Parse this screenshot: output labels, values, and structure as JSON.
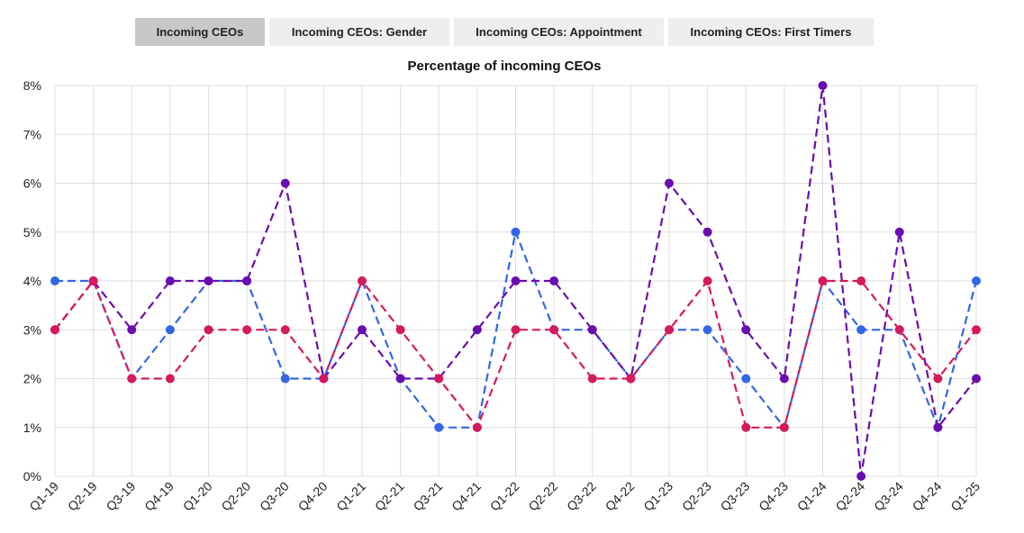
{
  "tabs": [
    {
      "label": "Incoming CEOs",
      "active": true
    },
    {
      "label": "Incoming CEOs: Gender",
      "active": false
    },
    {
      "label": "Incoming CEOs: Appointment",
      "active": false
    },
    {
      "label": "Incoming CEOs: First Timers",
      "active": false
    }
  ],
  "chart_data": {
    "type": "line",
    "title": "Percentage of incoming CEOs",
    "xlabel": "",
    "ylabel": "",
    "ylim": [
      0,
      8
    ],
    "yticks": [
      "0%",
      "1%",
      "2%",
      "3%",
      "4%",
      "5%",
      "6%",
      "7%",
      "8%"
    ],
    "grid": true,
    "categories": [
      "Q1-19",
      "Q2-19",
      "Q3-19",
      "Q4-19",
      "Q1-20",
      "Q2-20",
      "Q3-20",
      "Q4-20",
      "Q1-21",
      "Q2-21",
      "Q3-21",
      "Q4-21",
      "Q1-22",
      "Q2-22",
      "Q3-22",
      "Q4-22",
      "Q1-23",
      "Q2-23",
      "Q3-23",
      "Q4-23",
      "Q1-24",
      "Q2-24",
      "Q3-24",
      "Q4-24",
      "Q1-25"
    ],
    "series": [
      {
        "color": "#3366e6",
        "values": [
          4,
          4,
          2,
          3,
          4,
          4,
          2,
          2,
          4,
          2,
          1,
          1,
          5,
          3,
          3,
          2,
          3,
          3,
          2,
          1,
          4,
          3,
          3,
          1,
          4
        ]
      },
      {
        "color": "#6a0dad",
        "values": [
          3,
          4,
          3,
          4,
          4,
          4,
          6,
          2,
          3,
          2,
          2,
          3,
          4,
          4,
          3,
          2,
          6,
          5,
          3,
          2,
          8,
          0,
          5,
          1,
          2
        ]
      },
      {
        "color": "#d6195c",
        "values": [
          3,
          4,
          2,
          2,
          3,
          3,
          3,
          2,
          4,
          3,
          2,
          1,
          3,
          3,
          2,
          2,
          3,
          4,
          1,
          1,
          4,
          4,
          3,
          2,
          3
        ]
      }
    ]
  }
}
